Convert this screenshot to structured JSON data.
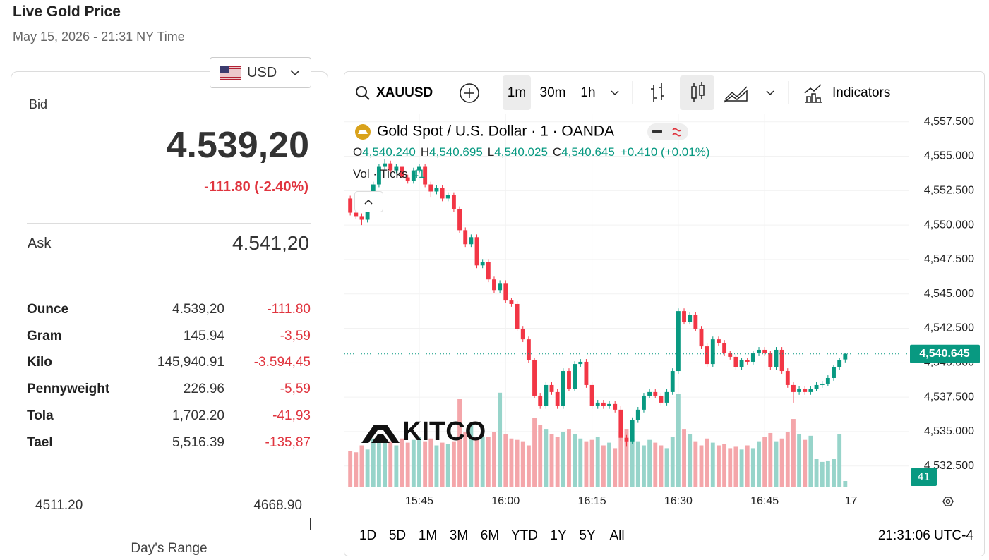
{
  "header": {
    "title": "Live Gold Price",
    "date": "May 15, 2026 - 21:31 NY Time"
  },
  "panel": {
    "currency": "USD",
    "bid_label": "Bid",
    "bid": "4.539,20",
    "bid_change": "-111.80 (-2.40%)",
    "ask_label": "Ask",
    "ask": "4.541,20",
    "units": [
      [
        "Ounce",
        "4.539,20",
        "-111.80"
      ],
      [
        "Gram",
        "145.94",
        "-3,59"
      ],
      [
        "Kilo",
        "145,940.91",
        "-3.594,45"
      ],
      [
        "Pennyweight",
        "226.96",
        "-5,59"
      ],
      [
        "Tola",
        "1,702.20",
        "-41,93"
      ],
      [
        "Tael",
        "5,516.39",
        "-135,87"
      ]
    ],
    "range": {
      "low": "4511.20",
      "high": "4668.90",
      "label": "Day's Range"
    }
  },
  "toolbar": {
    "symbol": "XAUUSD",
    "intervals": [
      "1m",
      "30m",
      "1h"
    ],
    "indicators": "Indicators"
  },
  "footer": {
    "periods": [
      "1D",
      "5D",
      "1M",
      "3M",
      "6M",
      "YTD",
      "1Y",
      "5Y",
      "All"
    ],
    "clock": "21:31:06 UTC-4"
  },
  "chart_data": {
    "type": "candlestick",
    "title": "Gold Spot / U.S. Dollar · 1 · OANDA",
    "ohlc_legend": {
      "open_key": "O",
      "open": "4,540.240",
      "high_key": "H",
      "high": "4,540.695",
      "low_key": "L",
      "low": "4,540.025",
      "close_key": "C",
      "close": "4,540.645",
      "change": "+0.410 (+0.01%)"
    },
    "volume_label": "Vol · Ticks",
    "watermark": "KITCO",
    "price_tag": "4,540.645",
    "up_color": "#089981",
    "down_color": "#f23645",
    "volume_up_color": "#97d4ca",
    "volume_down_color": "#f4a6aa",
    "x": [
      "15:33",
      "15:34",
      "15:35",
      "15:36",
      "15:37",
      "15:38",
      "15:39",
      "15:40",
      "15:41",
      "15:42",
      "15:43",
      "15:44",
      "15:45",
      "15:46",
      "15:47",
      "15:48",
      "15:49",
      "15:50",
      "15:51",
      "15:52",
      "15:53",
      "15:54",
      "15:55",
      "15:56",
      "15:57",
      "15:58",
      "15:59",
      "16:00",
      "16:01",
      "16:02",
      "16:03",
      "16:04",
      "16:05",
      "16:06",
      "16:07",
      "16:08",
      "16:09",
      "16:10",
      "16:11",
      "16:12",
      "16:13",
      "16:14",
      "16:15",
      "16:16",
      "16:17",
      "16:18",
      "16:19",
      "16:20",
      "16:21",
      "16:22",
      "16:23",
      "16:24",
      "16:25",
      "16:26",
      "16:27",
      "16:28",
      "16:29",
      "16:30",
      "16:31",
      "16:32",
      "16:33",
      "16:34",
      "16:35",
      "16:36",
      "16:37",
      "16:38",
      "16:39",
      "16:40",
      "16:41",
      "16:42",
      "16:43",
      "16:44",
      "16:45",
      "16:46",
      "16:47",
      "16:48",
      "16:49",
      "16:50",
      "16:51",
      "16:52",
      "16:53",
      "16:54",
      "16:55",
      "16:56",
      "16:57",
      "16:58",
      "16:59"
    ],
    "open": [
      4551.93,
      4550.9,
      4550.65,
      4550.39,
      4551.67,
      4552.95,
      4554.23,
      4554.48,
      4553.97,
      4554.23,
      4553.46,
      4553.21,
      4553.97,
      4554.23,
      4552.95,
      4552.44,
      4552.69,
      4551.93,
      4552.18,
      4551.16,
      4549.63,
      4548.61,
      4549.12,
      4547.07,
      4547.33,
      4546.05,
      4545.28,
      4545.79,
      4544.52,
      4544.27,
      4542.47,
      4541.7,
      4540.17,
      4537.61,
      4536.85,
      4538.38,
      4537.87,
      4536.85,
      4539.4,
      4538.12,
      4539.91,
      4540.07,
      4538.38,
      4536.85,
      4537.1,
      4536.85,
      4537.0,
      4536.59,
      4534.55,
      4534.29,
      4535.83,
      4536.59,
      4537.61,
      4537.87,
      4537.61,
      4537.1,
      4537.87,
      4539.4,
      4543.75,
      4542.98,
      4543.49,
      4542.47,
      4541.19,
      4539.91,
      4541.7,
      4541.45,
      4540.68,
      4540.43,
      4539.66,
      4540.17,
      4540.07,
      4540.68,
      4540.94,
      4540.68,
      4539.66,
      4540.94,
      4539.4,
      4538.38,
      4537.87,
      4538.12,
      4537.87,
      4538.12,
      4538.38,
      4538.48,
      4538.89,
      4539.66,
      4540.24
    ],
    "high": [
      4552.13,
      4551.1,
      4550.85,
      4551.87,
      4553.15,
      4554.43,
      4554.8,
      4554.68,
      4554.43,
      4554.43,
      4553.66,
      4554.17,
      4554.43,
      4554.43,
      4553.15,
      4552.89,
      4552.89,
      4552.38,
      4552.38,
      4551.36,
      4549.83,
      4549.32,
      4549.32,
      4547.53,
      4547.53,
      4546.25,
      4545.99,
      4545.99,
      4544.72,
      4544.47,
      4542.67,
      4541.9,
      4540.37,
      4537.81,
      4538.58,
      4538.58,
      4538.07,
      4539.6,
      4539.6,
      4540.11,
      4540.27,
      4540.27,
      4538.58,
      4537.3,
      4537.3,
      4537.2,
      4537.2,
      4536.85,
      4534.75,
      4536.03,
      4536.79,
      4537.81,
      4538.07,
      4538.07,
      4537.81,
      4538.07,
      4539.6,
      4543.95,
      4543.95,
      4543.69,
      4543.69,
      4542.67,
      4541.39,
      4541.9,
      4541.9,
      4541.65,
      4540.88,
      4540.63,
      4540.37,
      4540.37,
      4540.88,
      4541.14,
      4541.14,
      4540.88,
      4541.14,
      4541.14,
      4539.6,
      4538.58,
      4538.32,
      4538.32,
      4538.32,
      4538.58,
      4538.68,
      4539.09,
      4539.86,
      4540.37,
      4540.695
    ],
    "low": [
      4550.7,
      4550.45,
      4550.0,
      4550.19,
      4551.47,
      4552.75,
      4554.03,
      4553.77,
      4553.77,
      4553.26,
      4553.01,
      4553.01,
      4553.77,
      4552.75,
      4552.0,
      4552.24,
      4551.73,
      4551.73,
      4550.96,
      4549.43,
      4548.41,
      4548.41,
      4546.87,
      4546.87,
      4545.85,
      4545.08,
      4545.08,
      4544.32,
      4544.07,
      4542.27,
      4541.5,
      4539.97,
      4537.41,
      4536.65,
      4536.65,
      4537.67,
      4536.65,
      4536.65,
      4537.92,
      4537.92,
      4539.71,
      4538.18,
      4536.65,
      4536.65,
      4536.65,
      4536.65,
      4536.39,
      4534.35,
      4533.9,
      4534.09,
      4535.63,
      4536.39,
      4537.41,
      4537.41,
      4536.9,
      4536.9,
      4537.67,
      4539.2,
      4542.78,
      4542.78,
      4542.27,
      4540.99,
      4539.71,
      4539.71,
      4541.25,
      4540.48,
      4540.23,
      4539.46,
      4539.46,
      4539.87,
      4539.87,
      4540.48,
      4540.48,
      4539.46,
      4539.46,
      4539.2,
      4538.18,
      4537.1,
      4537.67,
      4537.67,
      4537.67,
      4537.92,
      4538.18,
      4538.28,
      4538.69,
      4539.46,
      4540.025
    ],
    "close": [
      4550.9,
      4550.65,
      4550.39,
      4551.67,
      4552.95,
      4554.23,
      4554.48,
      4553.97,
      4554.23,
      4553.46,
      4553.21,
      4553.97,
      4554.23,
      4552.95,
      4552.44,
      4552.69,
      4551.93,
      4552.18,
      4551.16,
      4549.63,
      4548.61,
      4549.12,
      4547.07,
      4547.33,
      4546.05,
      4545.28,
      4545.79,
      4544.52,
      4544.27,
      4542.47,
      4541.7,
      4540.17,
      4537.61,
      4536.85,
      4538.38,
      4537.87,
      4536.85,
      4539.4,
      4538.12,
      4539.91,
      4540.07,
      4538.38,
      4536.85,
      4537.1,
      4536.85,
      4537.0,
      4536.59,
      4534.55,
      4534.29,
      4535.83,
      4536.59,
      4537.61,
      4537.87,
      4537.61,
      4537.1,
      4537.87,
      4539.4,
      4543.75,
      4542.98,
      4543.49,
      4542.47,
      4541.19,
      4539.91,
      4541.7,
      4541.45,
      4540.68,
      4540.43,
      4539.66,
      4540.17,
      4540.07,
      4540.68,
      4540.94,
      4540.68,
      4539.66,
      4540.94,
      4539.4,
      4538.38,
      4537.87,
      4538.12,
      4537.87,
      4538.12,
      4538.38,
      4538.48,
      4538.89,
      4539.66,
      4540.17,
      4540.645
    ],
    "volume": [
      260,
      250,
      300,
      270,
      350,
      380,
      340,
      330,
      300,
      350,
      320,
      340,
      360,
      330,
      350,
      300,
      320,
      310,
      330,
      636,
      400,
      450,
      350,
      360,
      360,
      400,
      683,
      380,
      350,
      340,
      330,
      300,
      500,
      450,
      420,
      380,
      360,
      400,
      420,
      380,
      350,
      330,
      340,
      360,
      300,
      320,
      280,
      400,
      420,
      350,
      330,
      300,
      340,
      320,
      300,
      280,
      360,
      672,
      420,
      380,
      330,
      300,
      350,
      320,
      300,
      310,
      280,
      290,
      270,
      300,
      280,
      330,
      360,
      390,
      330,
      350,
      400,
      492,
      380,
      340,
      370,
      200,
      180,
      190,
      200,
      380,
      41
    ],
    "xlim": [
      "15:32",
      "17:10"
    ],
    "xticks": [
      "15:45",
      "16:00",
      "16:15",
      "16:30",
      "16:45",
      {
        "value": "17:00",
        "label": "17"
      }
    ],
    "ylim": [
      4531.0,
      4558.1
    ],
    "yticks": [
      {
        "value": 4557.5,
        "label": "4,557.500"
      },
      {
        "value": 4555,
        "label": "4,555.000"
      },
      {
        "value": 4552.5,
        "label": "4,552.500"
      },
      {
        "value": 4550,
        "label": "4,550.000"
      },
      {
        "value": 4547.5,
        "label": "4,547.500"
      },
      {
        "value": 4545,
        "label": "4,545.000"
      },
      {
        "value": 4542.5,
        "label": "4,542.500"
      },
      {
        "value": 4540,
        "label": "4,540.000"
      },
      {
        "value": 4537.5,
        "label": "4,537.500"
      },
      {
        "value": 4535,
        "label": "4,535.000"
      },
      {
        "value": 4532.5,
        "label": "4,532.500"
      }
    ],
    "y2lim": [
      0,
      1000
    ],
    "grid": true
  }
}
